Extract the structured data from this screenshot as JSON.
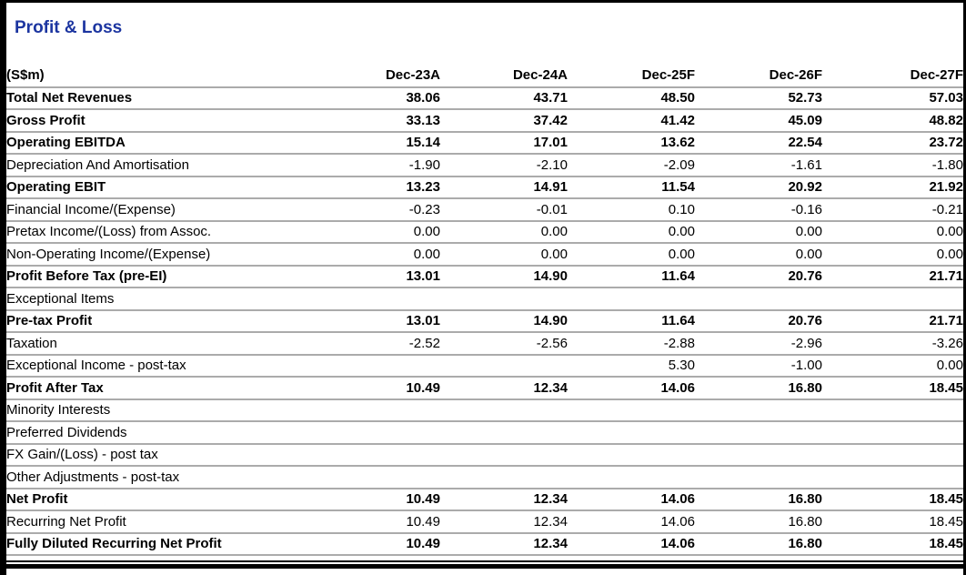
{
  "title": "Profit & Loss",
  "colors": {
    "title_blue": "#1c35a0",
    "row_line_gray": "#ababab",
    "frame_black": "#000000"
  },
  "table": {
    "unit_header": "(S$m)",
    "columns": [
      "Dec-23A",
      "Dec-24A",
      "Dec-25F",
      "Dec-26F",
      "Dec-27F"
    ],
    "rows": [
      {
        "label": "Total Net Revenues",
        "bold": true,
        "values": [
          "38.06",
          "43.71",
          "48.50",
          "52.73",
          "57.03"
        ]
      },
      {
        "label": "Gross Profit",
        "bold": true,
        "values": [
          "33.13",
          "37.42",
          "41.42",
          "45.09",
          "48.82"
        ]
      },
      {
        "label": "Operating EBITDA",
        "bold": true,
        "values": [
          "15.14",
          "17.01",
          "13.62",
          "22.54",
          "23.72"
        ]
      },
      {
        "label": "Depreciation And Amortisation",
        "bold": false,
        "values": [
          "-1.90",
          "-2.10",
          "-2.09",
          "-1.61",
          "-1.80"
        ]
      },
      {
        "label": "Operating EBIT",
        "bold": true,
        "values": [
          "13.23",
          "14.91",
          "11.54",
          "20.92",
          "21.92"
        ]
      },
      {
        "label": "Financial Income/(Expense)",
        "bold": false,
        "values": [
          "-0.23",
          "-0.01",
          "0.10",
          "-0.16",
          "-0.21"
        ]
      },
      {
        "label": "Pretax Income/(Loss) from Assoc.",
        "bold": false,
        "values": [
          "0.00",
          "0.00",
          "0.00",
          "0.00",
          "0.00"
        ]
      },
      {
        "label": "Non-Operating Income/(Expense)",
        "bold": false,
        "values": [
          "0.00",
          "0.00",
          "0.00",
          "0.00",
          "0.00"
        ]
      },
      {
        "label": "Profit Before Tax (pre-EI)",
        "bold": true,
        "values": [
          "13.01",
          "14.90",
          "11.64",
          "20.76",
          "21.71"
        ]
      },
      {
        "label": "Exceptional Items",
        "bold": false,
        "values": [
          "",
          "",
          "",
          "",
          ""
        ]
      },
      {
        "label": "Pre-tax Profit",
        "bold": true,
        "values": [
          "13.01",
          "14.90",
          "11.64",
          "20.76",
          "21.71"
        ]
      },
      {
        "label": "Taxation",
        "bold": false,
        "values": [
          "-2.52",
          "-2.56",
          "-2.88",
          "-2.96",
          "-3.26"
        ]
      },
      {
        "label": "Exceptional Income - post-tax",
        "bold": false,
        "values": [
          "",
          "",
          "5.30",
          "-1.00",
          "0.00"
        ]
      },
      {
        "label": "Profit After Tax",
        "bold": true,
        "values": [
          "10.49",
          "12.34",
          "14.06",
          "16.80",
          "18.45"
        ]
      },
      {
        "label": "Minority Interests",
        "bold": false,
        "values": [
          "",
          "",
          "",
          "",
          ""
        ]
      },
      {
        "label": "Preferred Dividends",
        "bold": false,
        "values": [
          "",
          "",
          "",
          "",
          ""
        ]
      },
      {
        "label": "FX Gain/(Loss) - post tax",
        "bold": false,
        "values": [
          "",
          "",
          "",
          "",
          ""
        ]
      },
      {
        "label": "Other Adjustments - post-tax",
        "bold": false,
        "values": [
          "",
          "",
          "",
          "",
          ""
        ]
      },
      {
        "label": "Net Profit",
        "bold": true,
        "values": [
          "10.49",
          "12.34",
          "14.06",
          "16.80",
          "18.45"
        ]
      },
      {
        "label": "Recurring Net Profit",
        "bold": false,
        "values": [
          "10.49",
          "12.34",
          "14.06",
          "16.80",
          "18.45"
        ]
      },
      {
        "label": "Fully Diluted Recurring Net Profit",
        "bold": true,
        "values": [
          "10.49",
          "12.34",
          "14.06",
          "16.80",
          "18.45"
        ]
      }
    ]
  }
}
